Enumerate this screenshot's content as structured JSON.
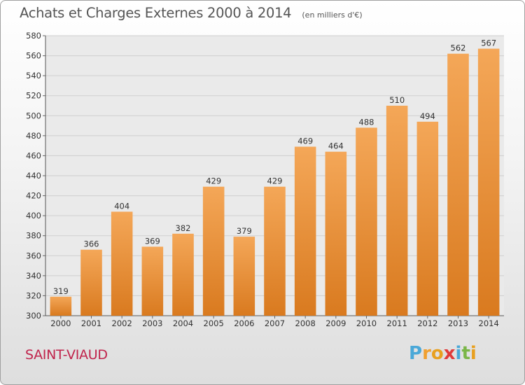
{
  "header": {
    "title": "Achats et Charges Externes 2000 à 2014",
    "unit": "(en milliers d'€)"
  },
  "footer": {
    "commune": "SAINT-VIAUD",
    "brand_letters": [
      "P",
      "r",
      "o",
      "x",
      "i",
      "t",
      "i"
    ],
    "brand_colors": [
      "#4aa8d8",
      "#f0a030",
      "#e8a020",
      "#e03a3a",
      "#4aa8d8",
      "#7ab648",
      "#e8a020"
    ]
  },
  "chart_data": {
    "type": "bar",
    "title": "Achats et Charges Externes 2000 à 2014",
    "subtitle": "(en milliers d'€)",
    "xlabel": "",
    "ylabel": "",
    "categories": [
      "2000",
      "2001",
      "2002",
      "2003",
      "2004",
      "2005",
      "2006",
      "2007",
      "2008",
      "2009",
      "2010",
      "2011",
      "2012",
      "2013",
      "2014"
    ],
    "values": [
      319,
      366,
      404,
      369,
      382,
      429,
      379,
      429,
      469,
      464,
      488,
      510,
      494,
      562,
      567
    ],
    "ylim": [
      300,
      580
    ],
    "yticks": [
      300,
      320,
      340,
      360,
      380,
      400,
      420,
      440,
      460,
      480,
      500,
      520,
      540,
      560,
      580
    ],
    "grid": true,
    "legend": "none",
    "bar_color_top": "#f4a758",
    "bar_color_bottom": "#d97a1f"
  }
}
